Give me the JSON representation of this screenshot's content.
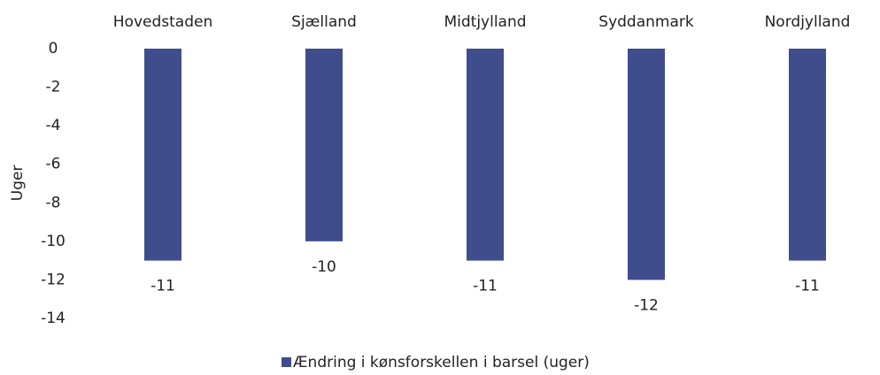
{
  "chart_data": {
    "type": "bar",
    "categories": [
      "Hovedstaden",
      "Sjælland",
      "Midtjylland",
      "Syddanmark",
      "Nordjylland"
    ],
    "series": [
      {
        "name": "Ændring i kønsforskellen i barsel (uger)",
        "color": "#3f4d8c",
        "values": [
          -11,
          -10,
          -11,
          -12,
          -11
        ]
      }
    ],
    "y_label": "Uger",
    "ylim": [
      -14,
      0
    ],
    "yticks": [
      0,
      -2,
      -4,
      -6,
      -8,
      -10,
      -12,
      -14
    ],
    "grid": false,
    "legend": "bottom"
  }
}
